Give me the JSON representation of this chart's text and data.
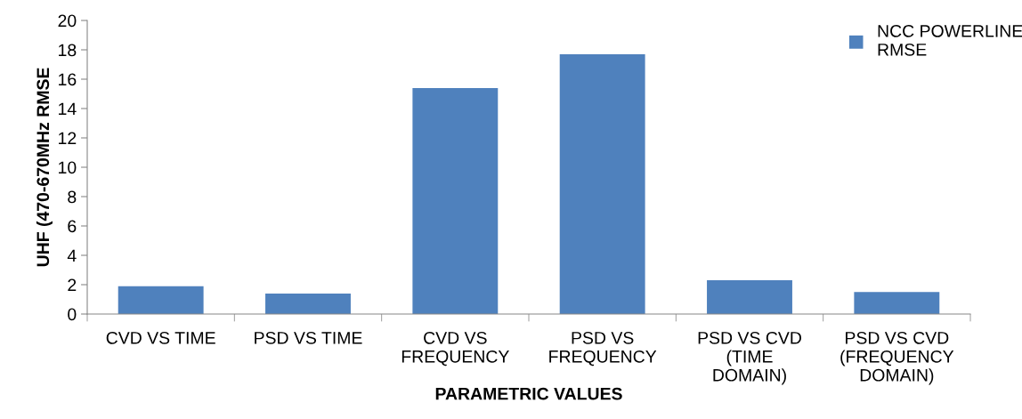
{
  "chart_data": {
    "type": "bar",
    "xlabel": "PARAMETRIC VALUES",
    "ylabel": "UHF (470-670MHz RMSE",
    "categories": [
      "CVD VS TIME",
      "PSD VS TIME",
      "CVD VS\nFREQUENCY",
      "PSD VS\nFREQUENCY",
      "PSD VS CVD\n(TIME\nDOMAIN)",
      "PSD VS CVD\n(FREQUENCY\nDOMAIN)"
    ],
    "series": [
      {
        "name": "NCC POWERLINE\nRMSE",
        "color": "#4f81bd",
        "values": [
          1.9,
          1.4,
          15.4,
          17.7,
          2.3,
          1.5
        ]
      }
    ],
    "ylim": [
      0,
      20
    ],
    "yticks": [
      0,
      2,
      4,
      6,
      8,
      10,
      12,
      14,
      16,
      18,
      20
    ],
    "grid": false,
    "legend": "top right"
  }
}
